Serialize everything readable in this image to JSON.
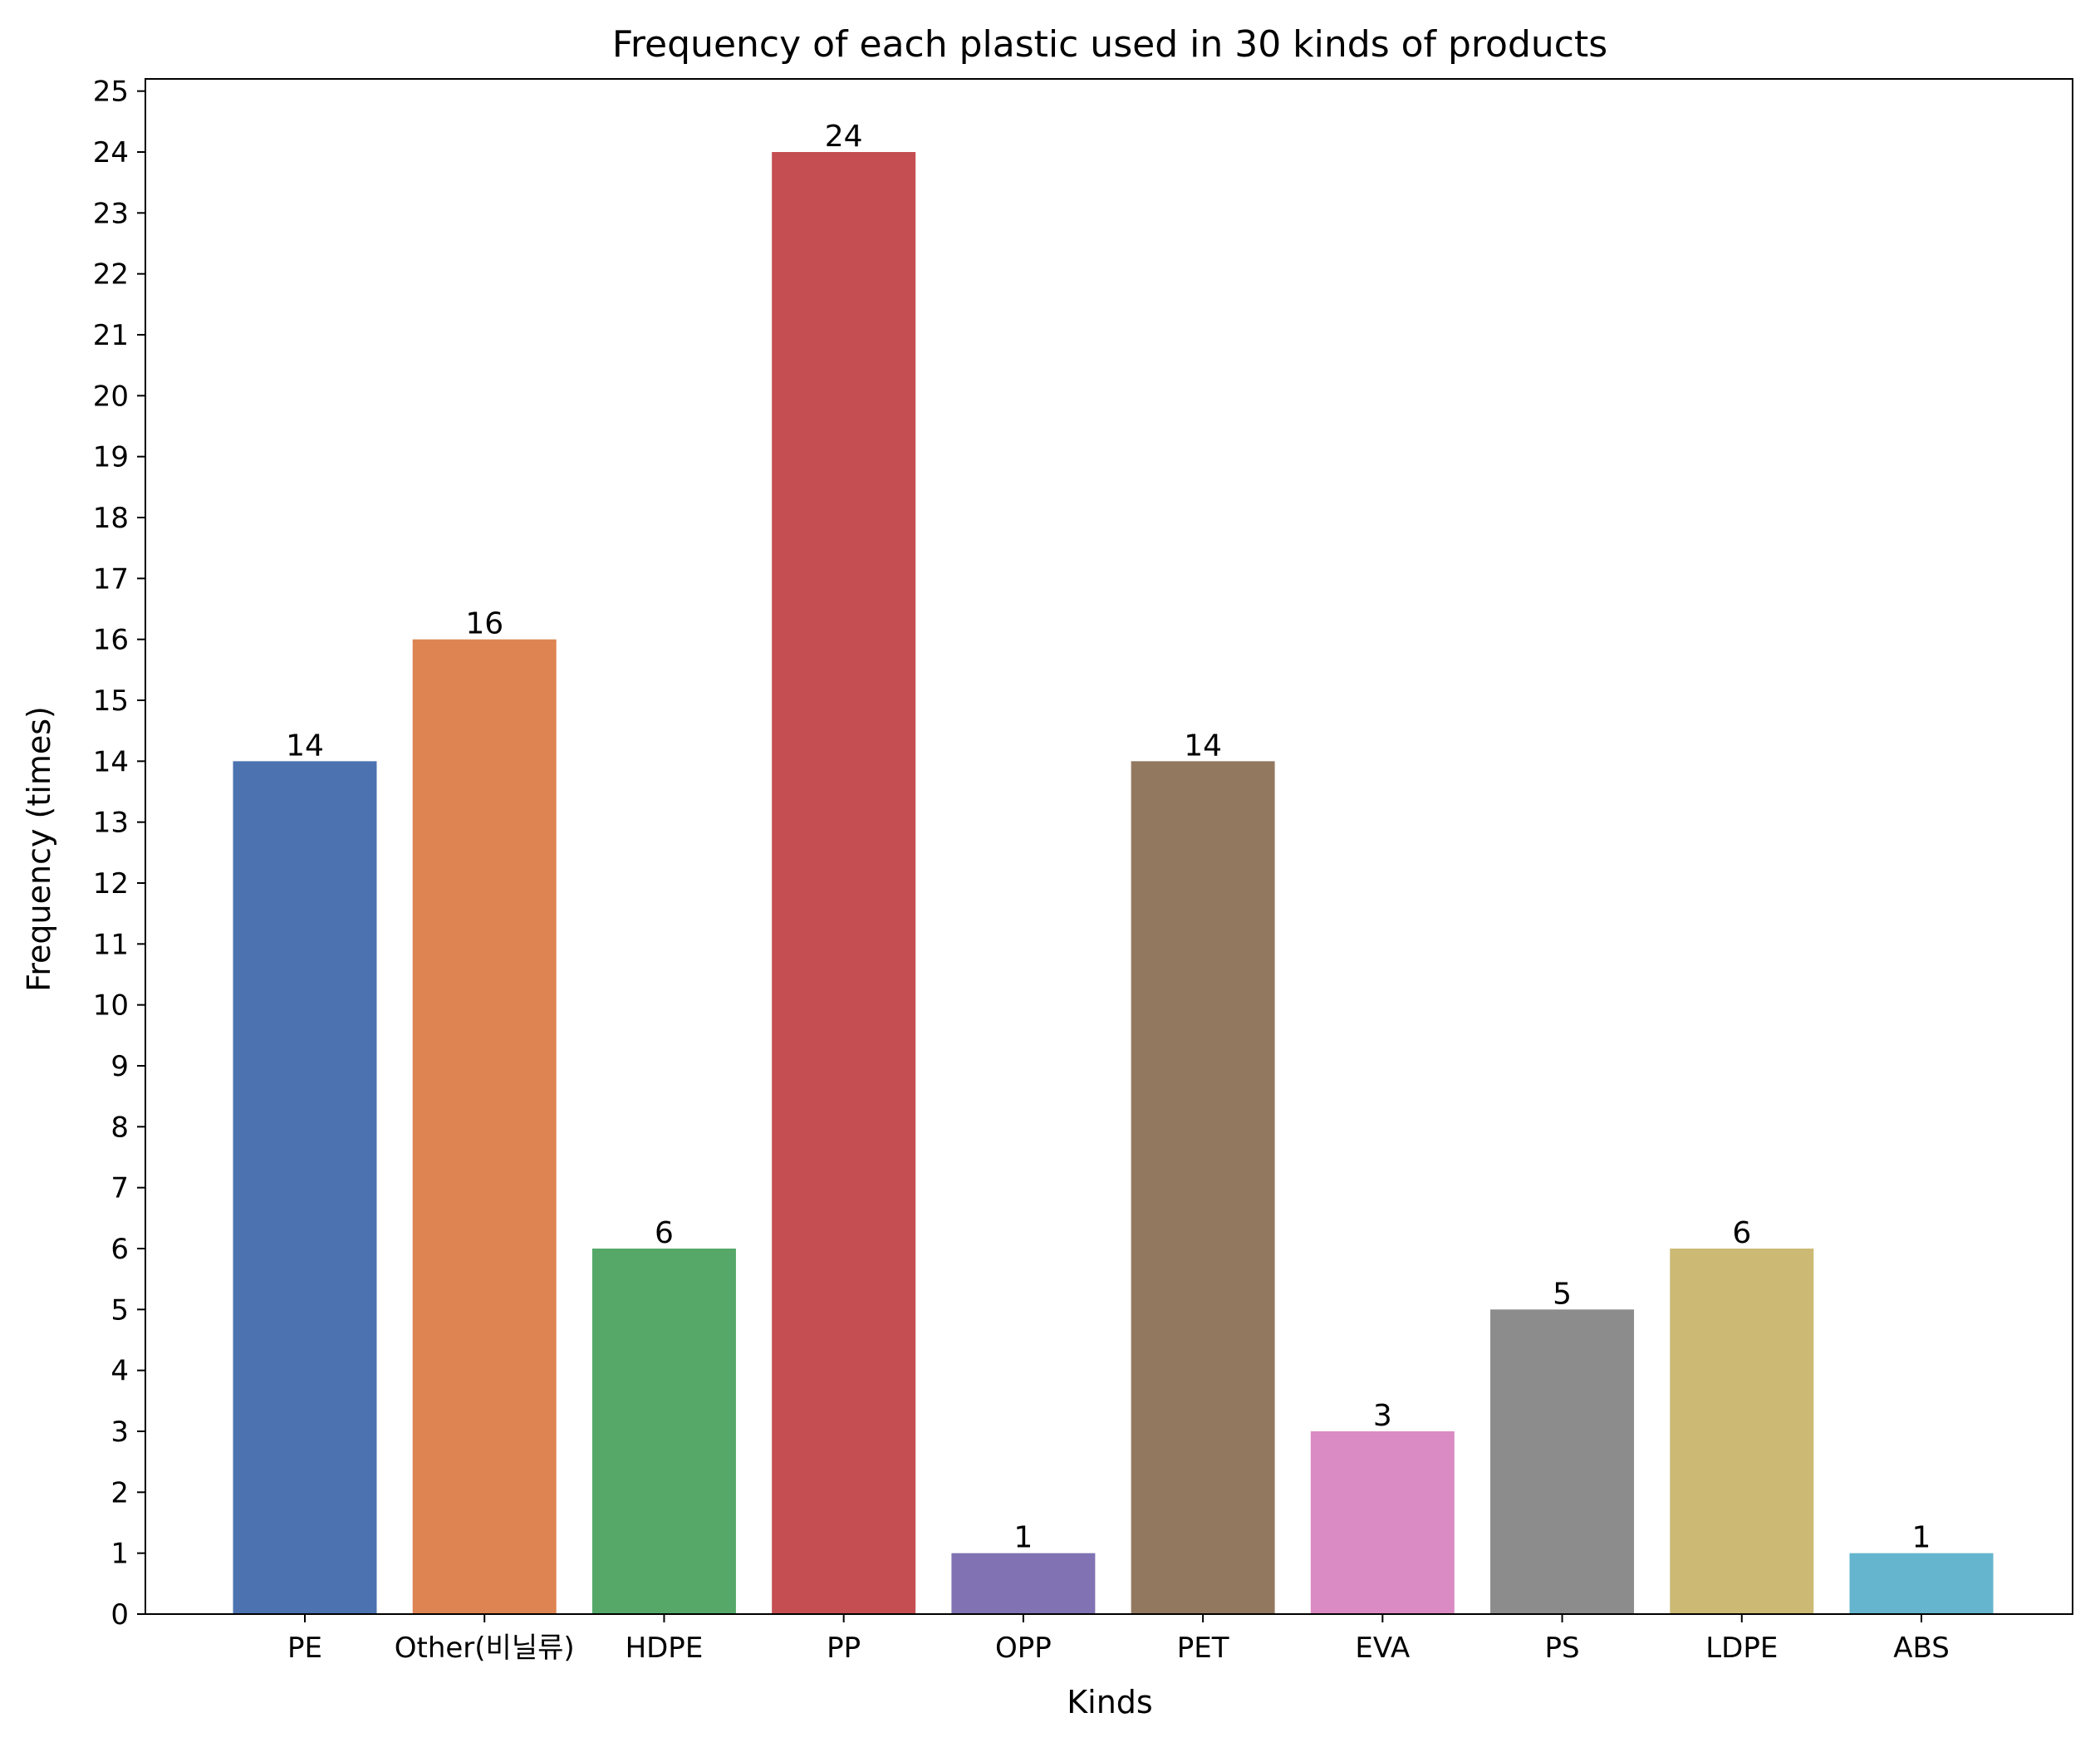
{
  "chart_data": {
    "type": "bar",
    "title": "Frequency of each plastic used in 30 kinds of products",
    "xlabel": "Kinds",
    "ylabel": "Frequency (times)",
    "categories": [
      "PE",
      "Other(비닐류)",
      "HDPE",
      "PP",
      "OPP",
      "PET",
      "EVA",
      "PS",
      "LDPE",
      "ABS"
    ],
    "values": [
      14,
      16,
      6,
      24,
      1,
      14,
      3,
      5,
      6,
      1
    ],
    "colors": [
      "#4c72b0",
      "#dd8452",
      "#55a868",
      "#c44e52",
      "#8172b3",
      "#937860",
      "#da8bc3",
      "#8c8c8c",
      "#ccb974",
      "#64b5cd"
    ],
    "ylim": [
      0,
      25.2
    ],
    "yticks": [
      0,
      1,
      2,
      3,
      4,
      5,
      6,
      7,
      8,
      9,
      10,
      11,
      12,
      13,
      14,
      15,
      16,
      17,
      18,
      19,
      20,
      21,
      22,
      23,
      24,
      25
    ],
    "grid": false,
    "legend": "none"
  }
}
